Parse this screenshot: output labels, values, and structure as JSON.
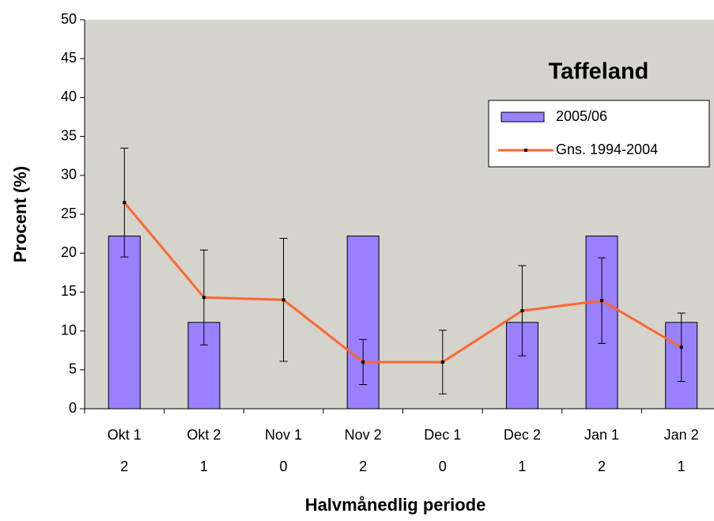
{
  "chart_data": {
    "type": "bar_line",
    "title": "Taffeland",
    "x_label": "Halvmånedlig periode",
    "y_label": "Procent (%)",
    "categories": [
      "Okt 1",
      "Okt 2",
      "Nov 1",
      "Nov 2",
      "Dec 1",
      "Dec 2",
      "Jan 1",
      "Jan 2"
    ],
    "category_counts": [
      2,
      1,
      0,
      2,
      0,
      1,
      2,
      1
    ],
    "series": [
      {
        "name": "2005/06",
        "type": "bar",
        "color": "#9980ff",
        "values": [
          22.2,
          11.1,
          0,
          22.2,
          0,
          11.1,
          22.2,
          11.1
        ]
      },
      {
        "name": "Gns. 1994-2004",
        "type": "line",
        "color": "#ff6633",
        "values": [
          26.5,
          14.3,
          14.0,
          6.0,
          6.0,
          12.6,
          13.9,
          7.9
        ],
        "error": [
          7.0,
          6.1,
          7.9,
          2.9,
          4.1,
          5.8,
          5.5,
          4.4
        ]
      }
    ],
    "ylim": [
      0,
      50
    ],
    "yticks": [
      0,
      5,
      10,
      15,
      20,
      25,
      30,
      35,
      40,
      45,
      50
    ],
    "legend": "upper right",
    "plot_background": "#d4d3cc"
  }
}
